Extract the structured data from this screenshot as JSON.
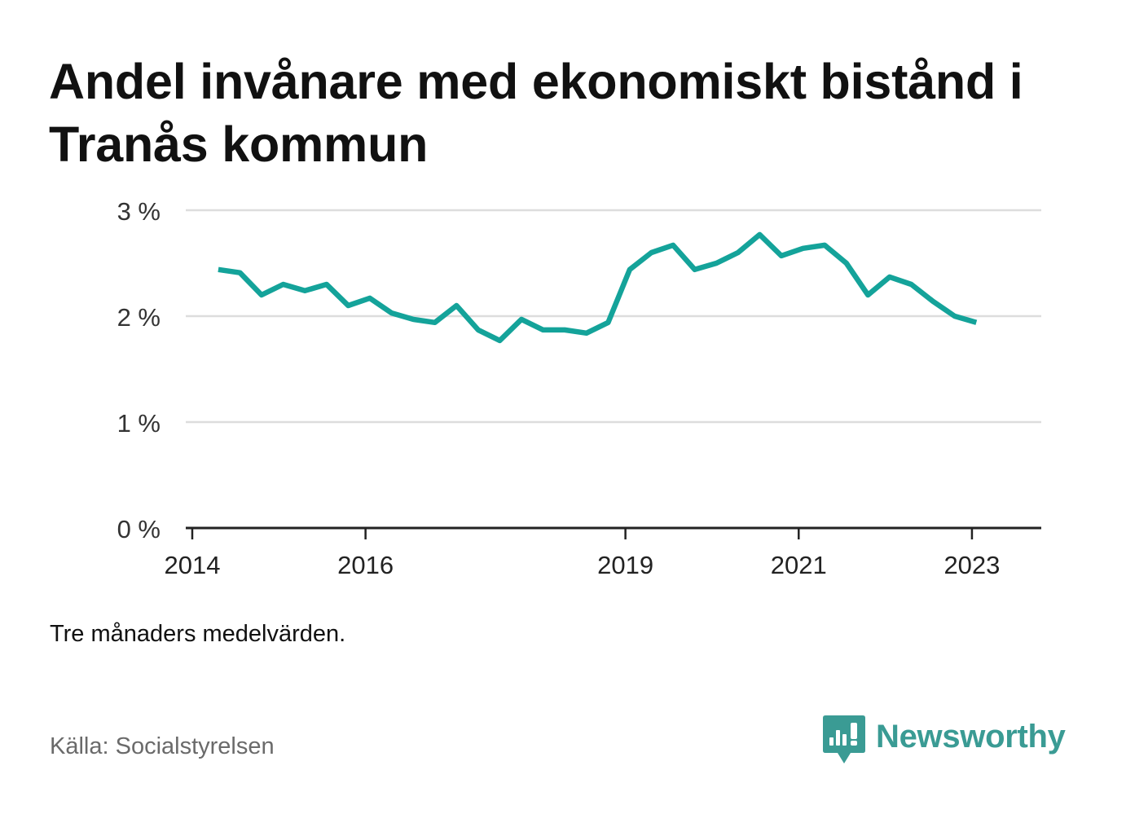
{
  "title": "Andel invånare med ekonomiskt bistånd i Tranås kommun",
  "note": "Tre månaders medelvärden.",
  "source": "Källa: Socialstyrelsen",
  "brand": {
    "name": "Newsworthy",
    "color": "#3a9b94",
    "logo_icon": "bar-chart-speech-bubble-icon"
  },
  "colors": {
    "line": "#14a39a",
    "grid": "#dddddd",
    "axis": "#222222",
    "text": "#111111",
    "muted": "#6a6a6a"
  },
  "chart_data": {
    "type": "line",
    "title": "Andel invånare med ekonomiskt bistånd i Tranås kommun",
    "xlabel": "",
    "ylabel": "",
    "xlim": [
      2013.925,
      2023.8
    ],
    "ylim": [
      0,
      3
    ],
    "y_ticks": [
      0,
      1,
      2,
      3
    ],
    "y_tick_labels": [
      "0 %",
      "1 %",
      "2 %",
      "3 %"
    ],
    "x_ticks": [
      2014,
      2016,
      2019,
      2021,
      2023
    ],
    "x_tick_labels": [
      "2014",
      "2016",
      "2019",
      "2021",
      "2023"
    ],
    "grid": true,
    "legend": "none",
    "series": [
      {
        "x": [
          2014.3,
          2014.55,
          2014.8,
          2015.05,
          2015.3,
          2015.55,
          2015.8,
          2016.05,
          2016.3,
          2016.55,
          2016.8,
          2017.05,
          2017.3,
          2017.55,
          2017.8,
          2018.05,
          2018.3,
          2018.55,
          2018.8,
          2019.05,
          2019.3,
          2019.55,
          2019.8,
          2020.05,
          2020.3,
          2020.55,
          2020.8,
          2021.05,
          2021.3,
          2021.55,
          2021.8,
          2022.05,
          2022.3,
          2022.55,
          2022.8,
          2023.05
        ],
        "y": [
          2.44,
          2.41,
          2.2,
          2.3,
          2.24,
          2.3,
          2.1,
          2.17,
          2.03,
          1.97,
          1.94,
          2.1,
          1.87,
          1.77,
          1.97,
          1.87,
          1.87,
          1.84,
          1.94,
          2.44,
          2.6,
          2.67,
          2.44,
          2.5,
          2.6,
          2.77,
          2.57,
          2.64,
          2.67,
          2.5,
          2.2,
          2.37,
          2.3,
          2.14,
          2.0,
          1.94
        ]
      }
    ]
  }
}
